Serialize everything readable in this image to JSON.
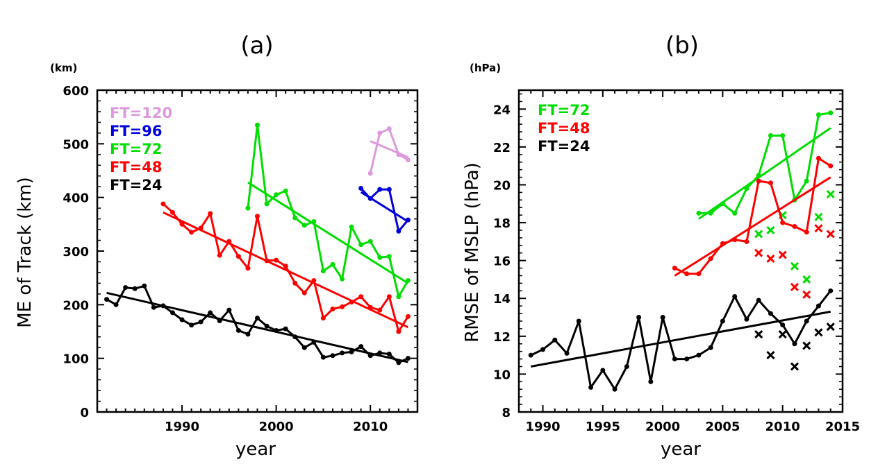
{
  "chart_data": [
    {
      "type": "line",
      "title": "(a)",
      "units_label": "(km)",
      "xlabel": "year",
      "ylabel": "ME of Track (km)",
      "xlim": [
        1981,
        2015
      ],
      "ylim": [
        0,
        600
      ],
      "xticks": [
        1990,
        2000,
        2010
      ],
      "yticks": [
        0,
        100,
        200,
        300,
        400,
        500,
        600
      ],
      "legend": "top-left",
      "series": [
        {
          "name": "FT=120",
          "color": "#dd99dd",
          "x": [
            2010,
            2011,
            2012,
            2013,
            2014
          ],
          "values": [
            445,
            520,
            528,
            480,
            470
          ],
          "trend": [
            [
              2010,
              505
            ],
            [
              2014,
              475
            ]
          ]
        },
        {
          "name": "FT=96",
          "color": "#0000dd",
          "x": [
            2009,
            2010,
            2011,
            2012,
            2013,
            2014
          ],
          "values": [
            417,
            398,
            415,
            415,
            337,
            358
          ],
          "trend": [
            [
              2009,
              410
            ],
            [
              2014,
              355
            ]
          ]
        },
        {
          "name": "FT=72",
          "color": "#00dd00",
          "x": [
            1997,
            1998,
            1999,
            2000,
            2001,
            2002,
            2003,
            2004,
            2005,
            2006,
            2007,
            2008,
            2009,
            2010,
            2011,
            2012,
            2013,
            2014
          ],
          "values": [
            380,
            535,
            388,
            405,
            412,
            362,
            348,
            355,
            263,
            275,
            248,
            345,
            312,
            318,
            288,
            290,
            215,
            245
          ],
          "trend": [
            [
              1997,
              428
            ],
            [
              2014,
              240
            ]
          ]
        },
        {
          "name": "FT=48",
          "color": "#ff0000",
          "x": [
            1988,
            1989,
            1990,
            1991,
            1992,
            1993,
            1994,
            1995,
            1996,
            1997,
            1998,
            1999,
            2000,
            2001,
            2002,
            2003,
            2004,
            2005,
            2006,
            2007,
            2008,
            2009,
            2010,
            2011,
            2012,
            2013,
            2014
          ],
          "values": [
            388,
            372,
            350,
            335,
            343,
            370,
            292,
            318,
            290,
            268,
            365,
            282,
            283,
            272,
            240,
            222,
            245,
            175,
            192,
            196,
            205,
            215,
            195,
            190,
            215,
            150,
            178
          ],
          "trend": [
            [
              1988,
              372
            ],
            [
              2014,
              158
            ]
          ]
        },
        {
          "name": "FT=24",
          "color": "#000000",
          "x": [
            1982,
            1983,
            1984,
            1985,
            1986,
            1987,
            1988,
            1989,
            1990,
            1991,
            1992,
            1993,
            1994,
            1995,
            1996,
            1997,
            1998,
            1999,
            2000,
            2001,
            2002,
            2003,
            2004,
            2005,
            2006,
            2007,
            2008,
            2009,
            2010,
            2011,
            2012,
            2013,
            2014
          ],
          "values": [
            210,
            200,
            232,
            230,
            235,
            195,
            198,
            185,
            172,
            162,
            168,
            185,
            170,
            190,
            152,
            145,
            175,
            160,
            152,
            155,
            140,
            120,
            130,
            102,
            105,
            110,
            112,
            122,
            105,
            110,
            108,
            92,
            100
          ],
          "trend": [
            [
              1982,
              222
            ],
            [
              2014,
              93
            ]
          ]
        }
      ]
    },
    {
      "type": "line",
      "title": "(b)",
      "units_label": "(hPa)",
      "xlabel": "year",
      "ylabel": "RMSE of MSLP (hPa)",
      "xlim": [
        1988,
        2015
      ],
      "ylim": [
        8,
        25
      ],
      "xticks": [
        1990,
        1995,
        2000,
        2005,
        2010,
        2015
      ],
      "yticks": [
        8,
        10,
        12,
        14,
        16,
        18,
        20,
        22,
        24
      ],
      "legend": "top-left",
      "series": [
        {
          "name": "FT=72",
          "color": "#00dd00",
          "x": [
            2003,
            2004,
            2005,
            2006,
            2007,
            2008,
            2009,
            2010,
            2011,
            2012,
            2013,
            2014
          ],
          "values": [
            18.5,
            18.5,
            19.0,
            18.5,
            19.8,
            20.5,
            22.6,
            22.6,
            19.2,
            20.2,
            23.7,
            23.8
          ],
          "trend": [
            [
              2003,
              18.2
            ],
            [
              2014,
              23.0
            ]
          ],
          "crosses_x": [
            2008,
            2009,
            2010,
            2011,
            2012,
            2013,
            2014
          ],
          "crosses": [
            17.4,
            17.6,
            18.4,
            15.7,
            15.0,
            18.3,
            19.5
          ]
        },
        {
          "name": "FT=48",
          "color": "#ff0000",
          "x": [
            2001,
            2002,
            2003,
            2004,
            2005,
            2006,
            2007,
            2008,
            2009,
            2010,
            2011,
            2012,
            2013,
            2014
          ],
          "values": [
            15.6,
            15.3,
            15.3,
            16.1,
            16.9,
            17.1,
            17.0,
            20.2,
            20.1,
            18.0,
            17.8,
            17.5,
            21.4,
            21.0
          ],
          "trend": [
            [
              2001,
              15.2
            ],
            [
              2014,
              20.4
            ]
          ],
          "crosses_x": [
            2008,
            2009,
            2010,
            2011,
            2012,
            2013,
            2014
          ],
          "crosses": [
            16.4,
            16.1,
            16.3,
            14.6,
            14.2,
            17.7,
            17.4
          ]
        },
        {
          "name": "FT=24",
          "color": "#000000",
          "x": [
            1989,
            1990,
            1991,
            1992,
            1993,
            1994,
            1995,
            1996,
            1997,
            1998,
            1999,
            2000,
            2001,
            2002,
            2003,
            2004,
            2005,
            2006,
            2007,
            2008,
            2009,
            2010,
            2011,
            2012,
            2013,
            2014
          ],
          "values": [
            11.0,
            11.3,
            11.8,
            11.1,
            12.8,
            9.3,
            10.2,
            9.2,
            10.4,
            13.0,
            9.6,
            13.0,
            10.8,
            10.8,
            11.0,
            11.4,
            12.8,
            14.1,
            12.9,
            13.9,
            13.2,
            12.6,
            11.6,
            12.8,
            13.6,
            14.4
          ],
          "trend": [
            [
              1989,
              10.4
            ],
            [
              2014,
              13.3
            ]
          ],
          "crosses_x": [
            2008,
            2009,
            2010,
            2011,
            2012,
            2013,
            2014
          ],
          "crosses": [
            12.1,
            11.0,
            12.1,
            10.4,
            11.5,
            12.2,
            12.5
          ]
        }
      ]
    }
  ]
}
